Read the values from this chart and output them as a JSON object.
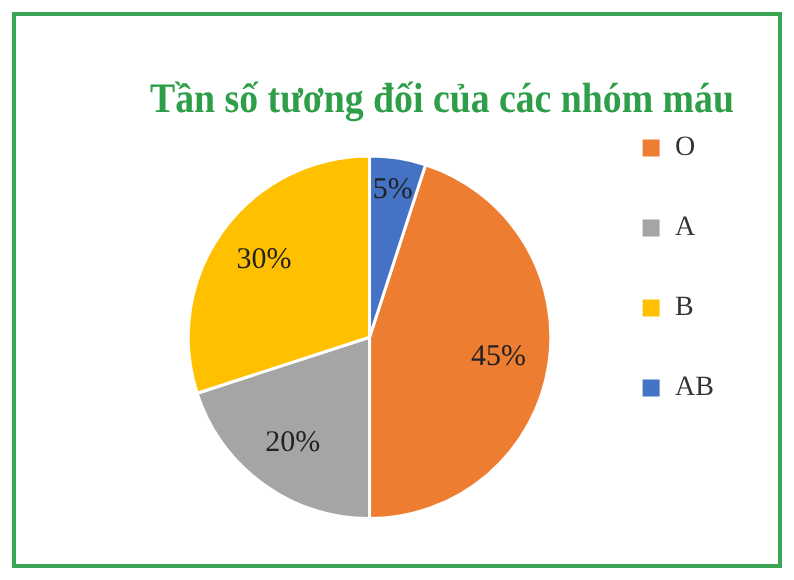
{
  "chart_data": {
    "type": "pie",
    "title": "Tần số tương đối của các nhóm máu",
    "categories": [
      "O",
      "A",
      "B",
      "AB"
    ],
    "values": [
      45,
      20,
      30,
      5
    ],
    "colors": [
      "#ed7d31",
      "#a5a5a5",
      "#ffc000",
      "#4472c4"
    ],
    "value_labels": [
      "45%",
      "20%",
      "30%",
      "5%"
    ],
    "legend": "right"
  }
}
